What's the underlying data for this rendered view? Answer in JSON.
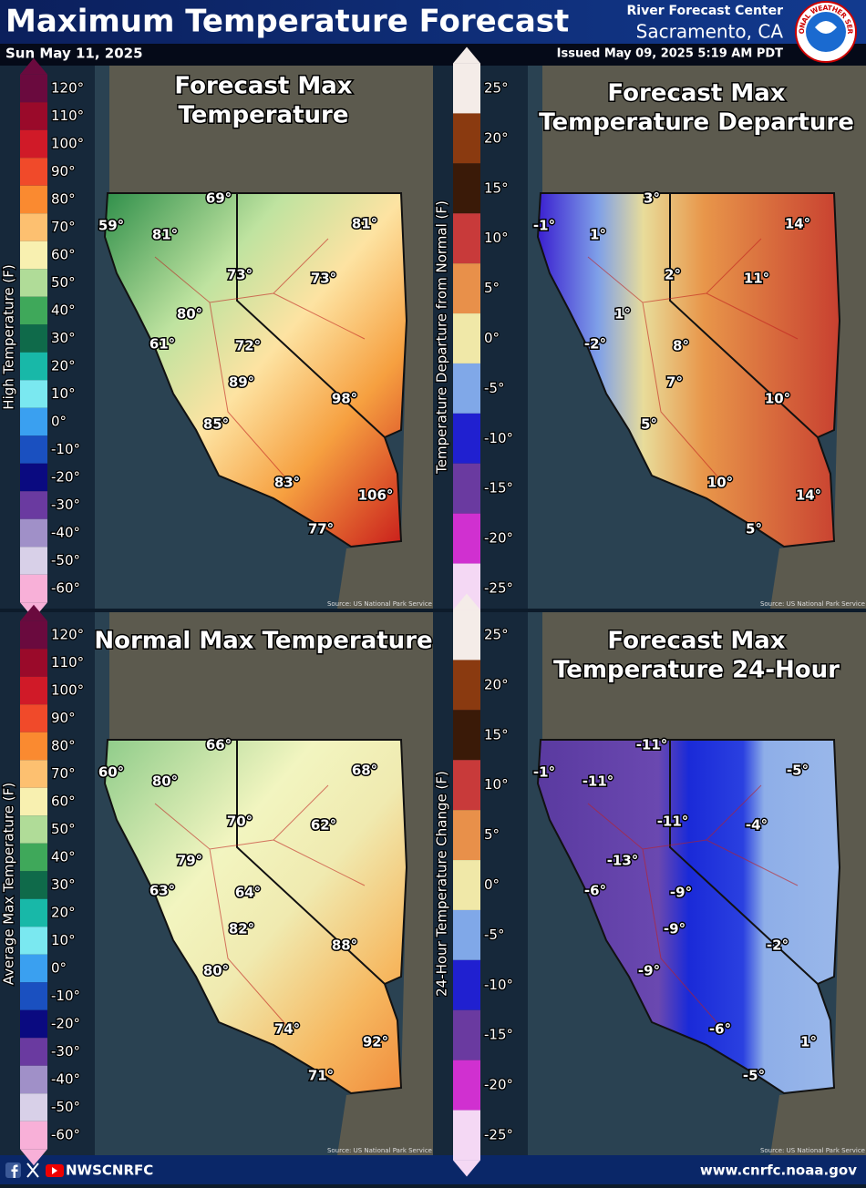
{
  "header": {
    "title": "Maximum Temperature Forecast",
    "date": "Sun May 11, 2025",
    "office": "River Forecast Center",
    "location": "Sacramento, CA",
    "issued": "Issued May 09, 2025 5:19 AM PDT",
    "logo_text": "NATIONAL WEATHER SERVICE"
  },
  "panels": [
    {
      "title_lines": [
        "Forecast Max",
        "Temperature"
      ],
      "scale_label": "High Temperature (F)",
      "scale_ticks": [
        "120°",
        "110°",
        "100°",
        "90°",
        "80°",
        "70°",
        "60°",
        "50°",
        "40°",
        "30°",
        "20°",
        "10°",
        "0°",
        "-10°",
        "-20°",
        "-30°",
        "-40°",
        "-50°",
        "-60°"
      ],
      "labels": [
        "69°",
        "59°",
        "81°",
        "81°",
        "73°",
        "73°",
        "80°",
        "61°",
        "72°",
        "89°",
        "98°",
        "85°",
        "83°",
        "106°",
        "77°"
      ],
      "source": "Source: US National Park Service"
    },
    {
      "title_lines": [
        "Forecast Max",
        "Temperature Departure"
      ],
      "scale_label": "Temperature Departure from Normal (F)",
      "scale_ticks": [
        "25°",
        "20°",
        "15°",
        "10°",
        "5°",
        "0°",
        "-5°",
        "-10°",
        "-15°",
        "-20°",
        "-25°"
      ],
      "labels": [
        "3°",
        "-1°",
        "1°",
        "14°",
        "2°",
        "11°",
        "1°",
        "-2°",
        "8°",
        "7°",
        "10°",
        "5°",
        "10°",
        "14°",
        "5°"
      ],
      "source": "Source: US National Park Service"
    },
    {
      "title_lines": [
        "Normal Max Temperature"
      ],
      "scale_label": "Average Max Temperature (F)",
      "scale_ticks": [
        "120°",
        "110°",
        "100°",
        "90°",
        "80°",
        "70°",
        "60°",
        "50°",
        "40°",
        "30°",
        "20°",
        "10°",
        "0°",
        "-10°",
        "-20°",
        "-30°",
        "-40°",
        "-50°",
        "-60°"
      ],
      "labels": [
        "66°",
        "60°",
        "80°",
        "68°",
        "70°",
        "62°",
        "79°",
        "63°",
        "64°",
        "82°",
        "88°",
        "80°",
        "74°",
        "92°",
        "71°"
      ],
      "source": "Source: US National Park Service"
    },
    {
      "title_lines": [
        "Forecast Max",
        "Temperature 24-Hour"
      ],
      "scale_label": "24-Hour Temperature Change (F)",
      "scale_ticks": [
        "25°",
        "20°",
        "15°",
        "10°",
        "5°",
        "0°",
        "-5°",
        "-10°",
        "-15°",
        "-20°",
        "-25°"
      ],
      "labels": [
        "-11°",
        "-1°",
        "-11°",
        "-5°",
        "-11°",
        "-4°",
        "-13°",
        "-6°",
        "-9°",
        "-9°",
        "-2°",
        "-9°",
        "-6°",
        "1°",
        "-5°"
      ],
      "source": "Source: US National Park Service"
    }
  ],
  "footer": {
    "handle": "NWSCNRFC",
    "url": "www.cnrfc.noaa.gov"
  }
}
